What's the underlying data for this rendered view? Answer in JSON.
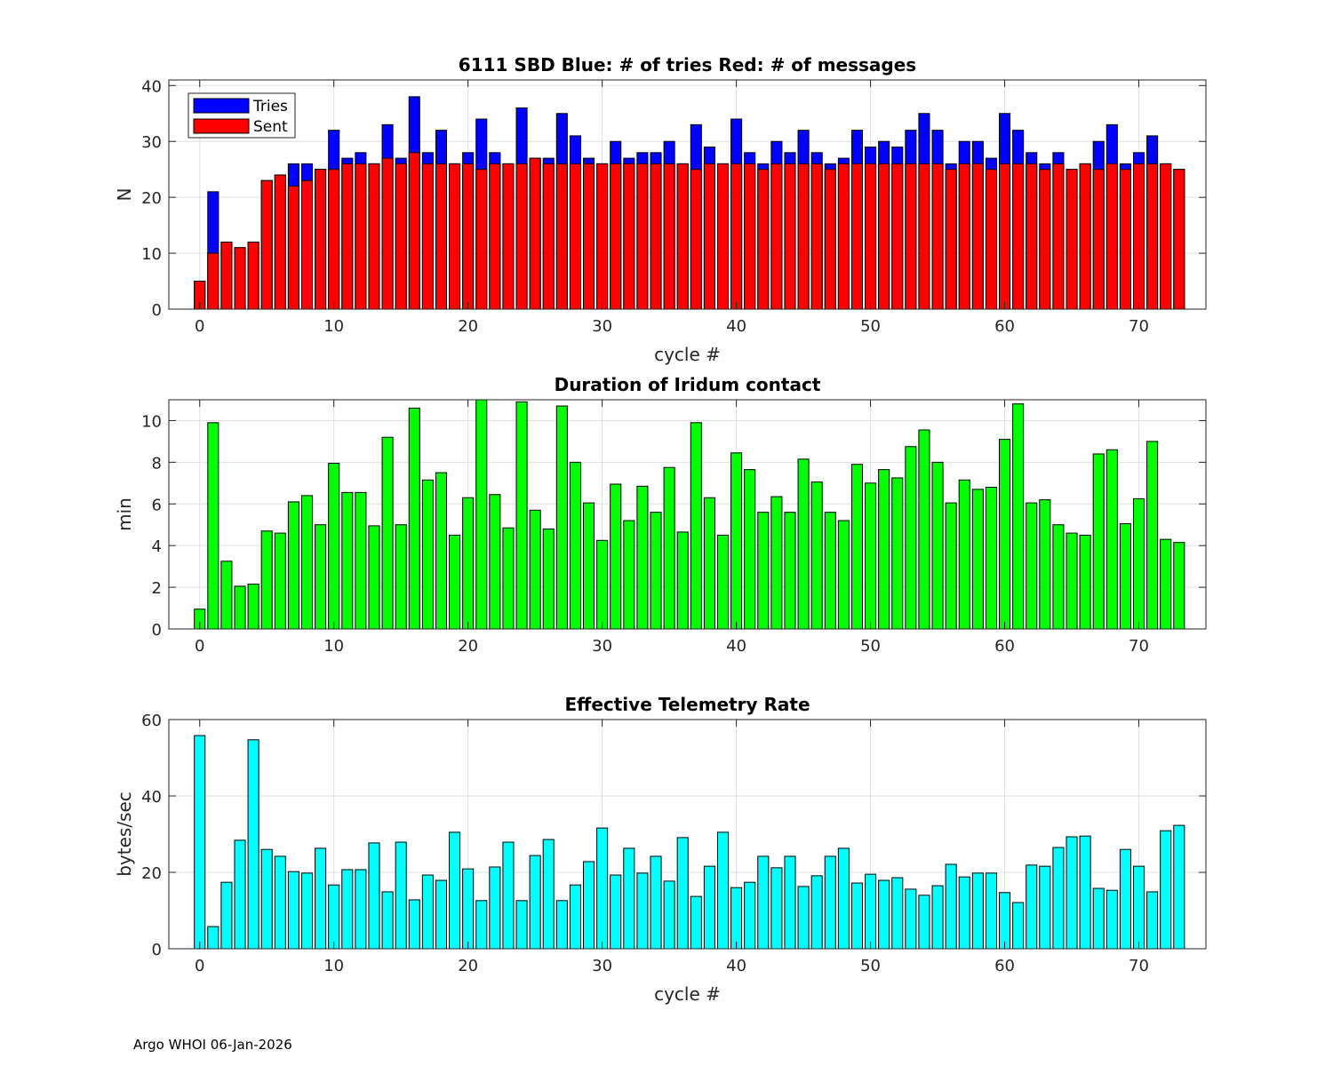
{
  "footer": "Argo WHOI 06-Jan-2026",
  "colors": {
    "tries": "#0000ff",
    "sent": "#ff0000",
    "duration": "#00ff00",
    "rate": "#00ffff"
  },
  "chart_data": [
    {
      "type": "bar",
      "title": "6111 SBD  Blue: # of tries   Red: # of messages",
      "xlabel": "cycle #",
      "ylabel": "N",
      "xlim": [
        -2.3,
        75
      ],
      "ylim": [
        0,
        41
      ],
      "xticks": [
        0,
        10,
        20,
        30,
        40,
        50,
        60,
        70
      ],
      "yticks": [
        0,
        10,
        20,
        30,
        40
      ],
      "grid": true,
      "legend": {
        "placement": "top-left",
        "entries": [
          "Tries",
          "Sent"
        ]
      },
      "x": [
        0,
        1,
        2,
        3,
        4,
        5,
        6,
        7,
        8,
        9,
        10,
        11,
        12,
        13,
        14,
        15,
        16,
        17,
        18,
        19,
        20,
        21,
        22,
        23,
        24,
        25,
        26,
        27,
        28,
        29,
        30,
        31,
        32,
        33,
        34,
        35,
        36,
        37,
        38,
        39,
        40,
        41,
        42,
        43,
        44,
        45,
        46,
        47,
        48,
        49,
        50,
        51,
        52,
        53,
        54,
        55,
        56,
        57,
        58,
        59,
        60,
        61,
        62,
        63,
        64,
        65,
        66,
        67,
        68,
        69,
        70,
        71,
        72,
        73
      ],
      "series": [
        {
          "name": "Tries",
          "values": [
            5,
            21,
            12,
            11,
            12,
            23,
            24,
            26,
            26,
            25,
            32,
            27,
            28,
            26,
            33,
            27,
            38,
            28,
            32,
            26,
            28,
            34,
            28,
            26,
            36,
            27,
            27,
            35,
            31,
            27,
            26,
            30,
            27,
            28,
            28,
            30,
            26,
            33,
            29,
            26,
            34,
            28,
            26,
            30,
            28,
            32,
            28,
            26,
            27,
            32,
            29,
            30,
            29,
            32,
            35,
            32,
            26,
            30,
            30,
            27,
            35,
            32,
            28,
            26,
            28,
            25,
            26,
            30,
            33,
            26,
            28,
            31,
            26,
            25
          ]
        },
        {
          "name": "Sent",
          "values": [
            5,
            10,
            12,
            11,
            12,
            23,
            24,
            22,
            23,
            25,
            25,
            26,
            26,
            26,
            27,
            26,
            28,
            26,
            26,
            26,
            26,
            25,
            26,
            26,
            26,
            27,
            26,
            26,
            26,
            26,
            26,
            26,
            26,
            26,
            26,
            26,
            26,
            25,
            26,
            26,
            26,
            26,
            25,
            26,
            26,
            26,
            26,
            25,
            26,
            26,
            26,
            26,
            26,
            26,
            26,
            26,
            25,
            26,
            26,
            25,
            26,
            26,
            26,
            25,
            26,
            25,
            26,
            25,
            26,
            25,
            26,
            26,
            26,
            25
          ]
        }
      ]
    },
    {
      "type": "bar",
      "title": "Duration of Iridum contact",
      "xlabel": "",
      "ylabel": "min",
      "xlim": [
        -2.3,
        75
      ],
      "ylim": [
        0,
        11
      ],
      "xticks": [
        0,
        10,
        20,
        30,
        40,
        50,
        60,
        70
      ],
      "yticks": [
        0,
        2,
        4,
        6,
        8,
        10
      ],
      "grid": true,
      "x": [
        0,
        1,
        2,
        3,
        4,
        5,
        6,
        7,
        8,
        9,
        10,
        11,
        12,
        13,
        14,
        15,
        16,
        17,
        18,
        19,
        20,
        21,
        22,
        23,
        24,
        25,
        26,
        27,
        28,
        29,
        30,
        31,
        32,
        33,
        34,
        35,
        36,
        37,
        38,
        39,
        40,
        41,
        42,
        43,
        44,
        45,
        46,
        47,
        48,
        49,
        50,
        51,
        52,
        53,
        54,
        55,
        56,
        57,
        58,
        59,
        60,
        61,
        62,
        63,
        64,
        65,
        66,
        67,
        68,
        69,
        70,
        71,
        72,
        73
      ],
      "series": [
        {
          "name": "Duration",
          "values": [
            0.95,
            9.9,
            3.25,
            2.05,
            2.15,
            4.7,
            4.6,
            6.1,
            6.4,
            5.0,
            7.95,
            6.55,
            6.55,
            4.95,
            9.2,
            5.0,
            10.6,
            7.15,
            7.5,
            4.5,
            6.3,
            11.0,
            6.45,
            4.85,
            10.9,
            5.7,
            4.8,
            10.7,
            8.0,
            6.05,
            4.25,
            6.95,
            5.2,
            6.85,
            5.6,
            7.75,
            4.65,
            9.9,
            6.3,
            4.5,
            8.45,
            7.65,
            5.6,
            6.35,
            5.6,
            8.15,
            7.05,
            5.6,
            5.2,
            7.9,
            7.0,
            7.65,
            7.25,
            8.75,
            9.55,
            8.0,
            6.05,
            7.15,
            6.7,
            6.8,
            9.1,
            10.8,
            6.05,
            6.2,
            5.0,
            4.6,
            4.5,
            8.4,
            8.6,
            5.05,
            6.25,
            9.0,
            4.3,
            4.15
          ]
        }
      ]
    },
    {
      "type": "bar",
      "title": "Effective Telemetry Rate",
      "xlabel": "cycle #",
      "ylabel": "bytes/sec",
      "xlim": [
        -2.3,
        75
      ],
      "ylim": [
        0,
        60
      ],
      "xticks": [
        0,
        10,
        20,
        30,
        40,
        50,
        60,
        70
      ],
      "yticks": [
        0,
        20,
        40,
        60
      ],
      "grid": true,
      "x": [
        0,
        1,
        2,
        3,
        4,
        5,
        6,
        7,
        8,
        9,
        10,
        11,
        12,
        13,
        14,
        15,
        16,
        17,
        18,
        19,
        20,
        21,
        22,
        23,
        24,
        25,
        26,
        27,
        28,
        29,
        30,
        31,
        32,
        33,
        34,
        35,
        36,
        37,
        38,
        39,
        40,
        41,
        42,
        43,
        44,
        45,
        46,
        47,
        48,
        49,
        50,
        51,
        52,
        53,
        54,
        55,
        56,
        57,
        58,
        59,
        60,
        61,
        62,
        63,
        64,
        65,
        66,
        67,
        68,
        69,
        70,
        71,
        72,
        73
      ],
      "series": [
        {
          "name": "Rate",
          "values": [
            55.8,
            5.8,
            17.4,
            28.4,
            54.7,
            26,
            24.2,
            20.2,
            19.8,
            26.3,
            16.7,
            20.7,
            20.7,
            27.7,
            14.9,
            27.9,
            12.8,
            19.3,
            17.9,
            30.5,
            20.9,
            12.6,
            21.4,
            27.9,
            12.6,
            24.4,
            28.6,
            12.6,
            16.7,
            22.8,
            31.6,
            19.3,
            26.3,
            19.8,
            24.2,
            17.7,
            29.1,
            13.7,
            21.6,
            30.5,
            16,
            17.4,
            24.2,
            21.2,
            24.2,
            16.3,
            19.1,
            24.2,
            26.3,
            17.2,
            19.5,
            17.9,
            18.6,
            15.6,
            14,
            16.5,
            22.1,
            18.8,
            19.8,
            19.8,
            14.7,
            12.1,
            21.9,
            21.6,
            26.5,
            29.3,
            29.5,
            15.8,
            15.3,
            26,
            21.6,
            14.9,
            30.9,
            32.3
          ]
        }
      ]
    }
  ]
}
